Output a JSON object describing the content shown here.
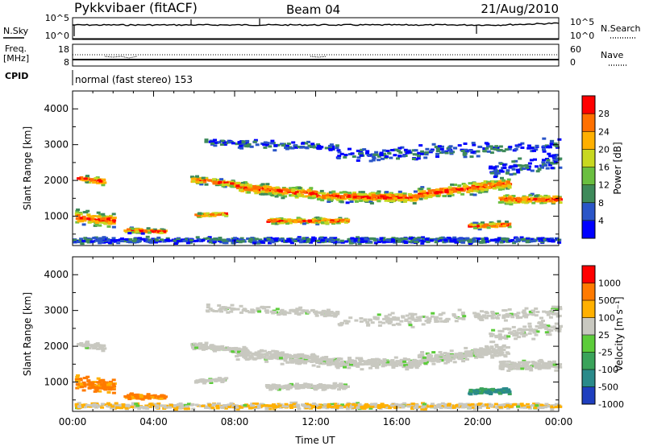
{
  "header": {
    "station": "Pykkvibaer (fitACF)",
    "beam": "Beam 04",
    "date": "21/Aug/2010"
  },
  "nsky_panel": {
    "left_label": "N.Sky",
    "right_label": "N.Search",
    "left_ticks": [
      "10^5",
      "10^0"
    ],
    "right_ticks": [
      "10^5",
      "10^0"
    ],
    "right_legend_style": "dotted"
  },
  "freq_panel": {
    "left_label_1": "Freq.",
    "left_label_2": "[MHz]",
    "right_label": "Nave",
    "left_ticks": [
      "18",
      "8"
    ],
    "right_ticks": [
      "60",
      "0"
    ],
    "right_legend_style": "dotted"
  },
  "cpid": {
    "label": "CPID",
    "value": "normal (fast stereo) 153"
  },
  "chart_data": [
    {
      "type": "heatmap",
      "name": "power",
      "ylabel": "Slant Range [km]",
      "y_ticks": [
        "4000",
        "3000",
        "2000",
        "1000"
      ],
      "colorbar_label": "Power [dB]",
      "colorbar_ticks": [
        "28",
        "24",
        "20",
        "16",
        "12",
        "8",
        "4"
      ],
      "colorbar_colors": [
        "#0000ff",
        "#2a55c8",
        "#3e8a5a",
        "#6abf40",
        "#c8d820",
        "#ffb000",
        "#ff7000",
        "#ff0000"
      ],
      "ylim": [
        180,
        4500
      ],
      "xlim_hours": [
        0,
        24
      ]
    },
    {
      "type": "heatmap",
      "name": "velocity",
      "ylabel": "Slant Range [km]",
      "y_ticks": [
        "4000",
        "3000",
        "2000",
        "1000"
      ],
      "colorbar_label": "Velocity [m s⁻¹]",
      "colorbar_ticks": [
        "1000",
        "500",
        "100",
        "25",
        "-25",
        "-100",
        "-500",
        "-1000"
      ],
      "colorbar_colors": [
        "#1f3fbf",
        "#2a8a8a",
        "#3aa35a",
        "#5ccc3a",
        "#c8c8c0",
        "#ffb000",
        "#ff7a00",
        "#ff0000"
      ],
      "ylim": [
        180,
        4500
      ],
      "xlim_hours": [
        0,
        24
      ]
    }
  ],
  "x_axis": {
    "label": "Time UT",
    "ticks": [
      "00:00",
      "04:00",
      "08:00",
      "12:00",
      "16:00",
      "20:00",
      "00:00"
    ]
  }
}
